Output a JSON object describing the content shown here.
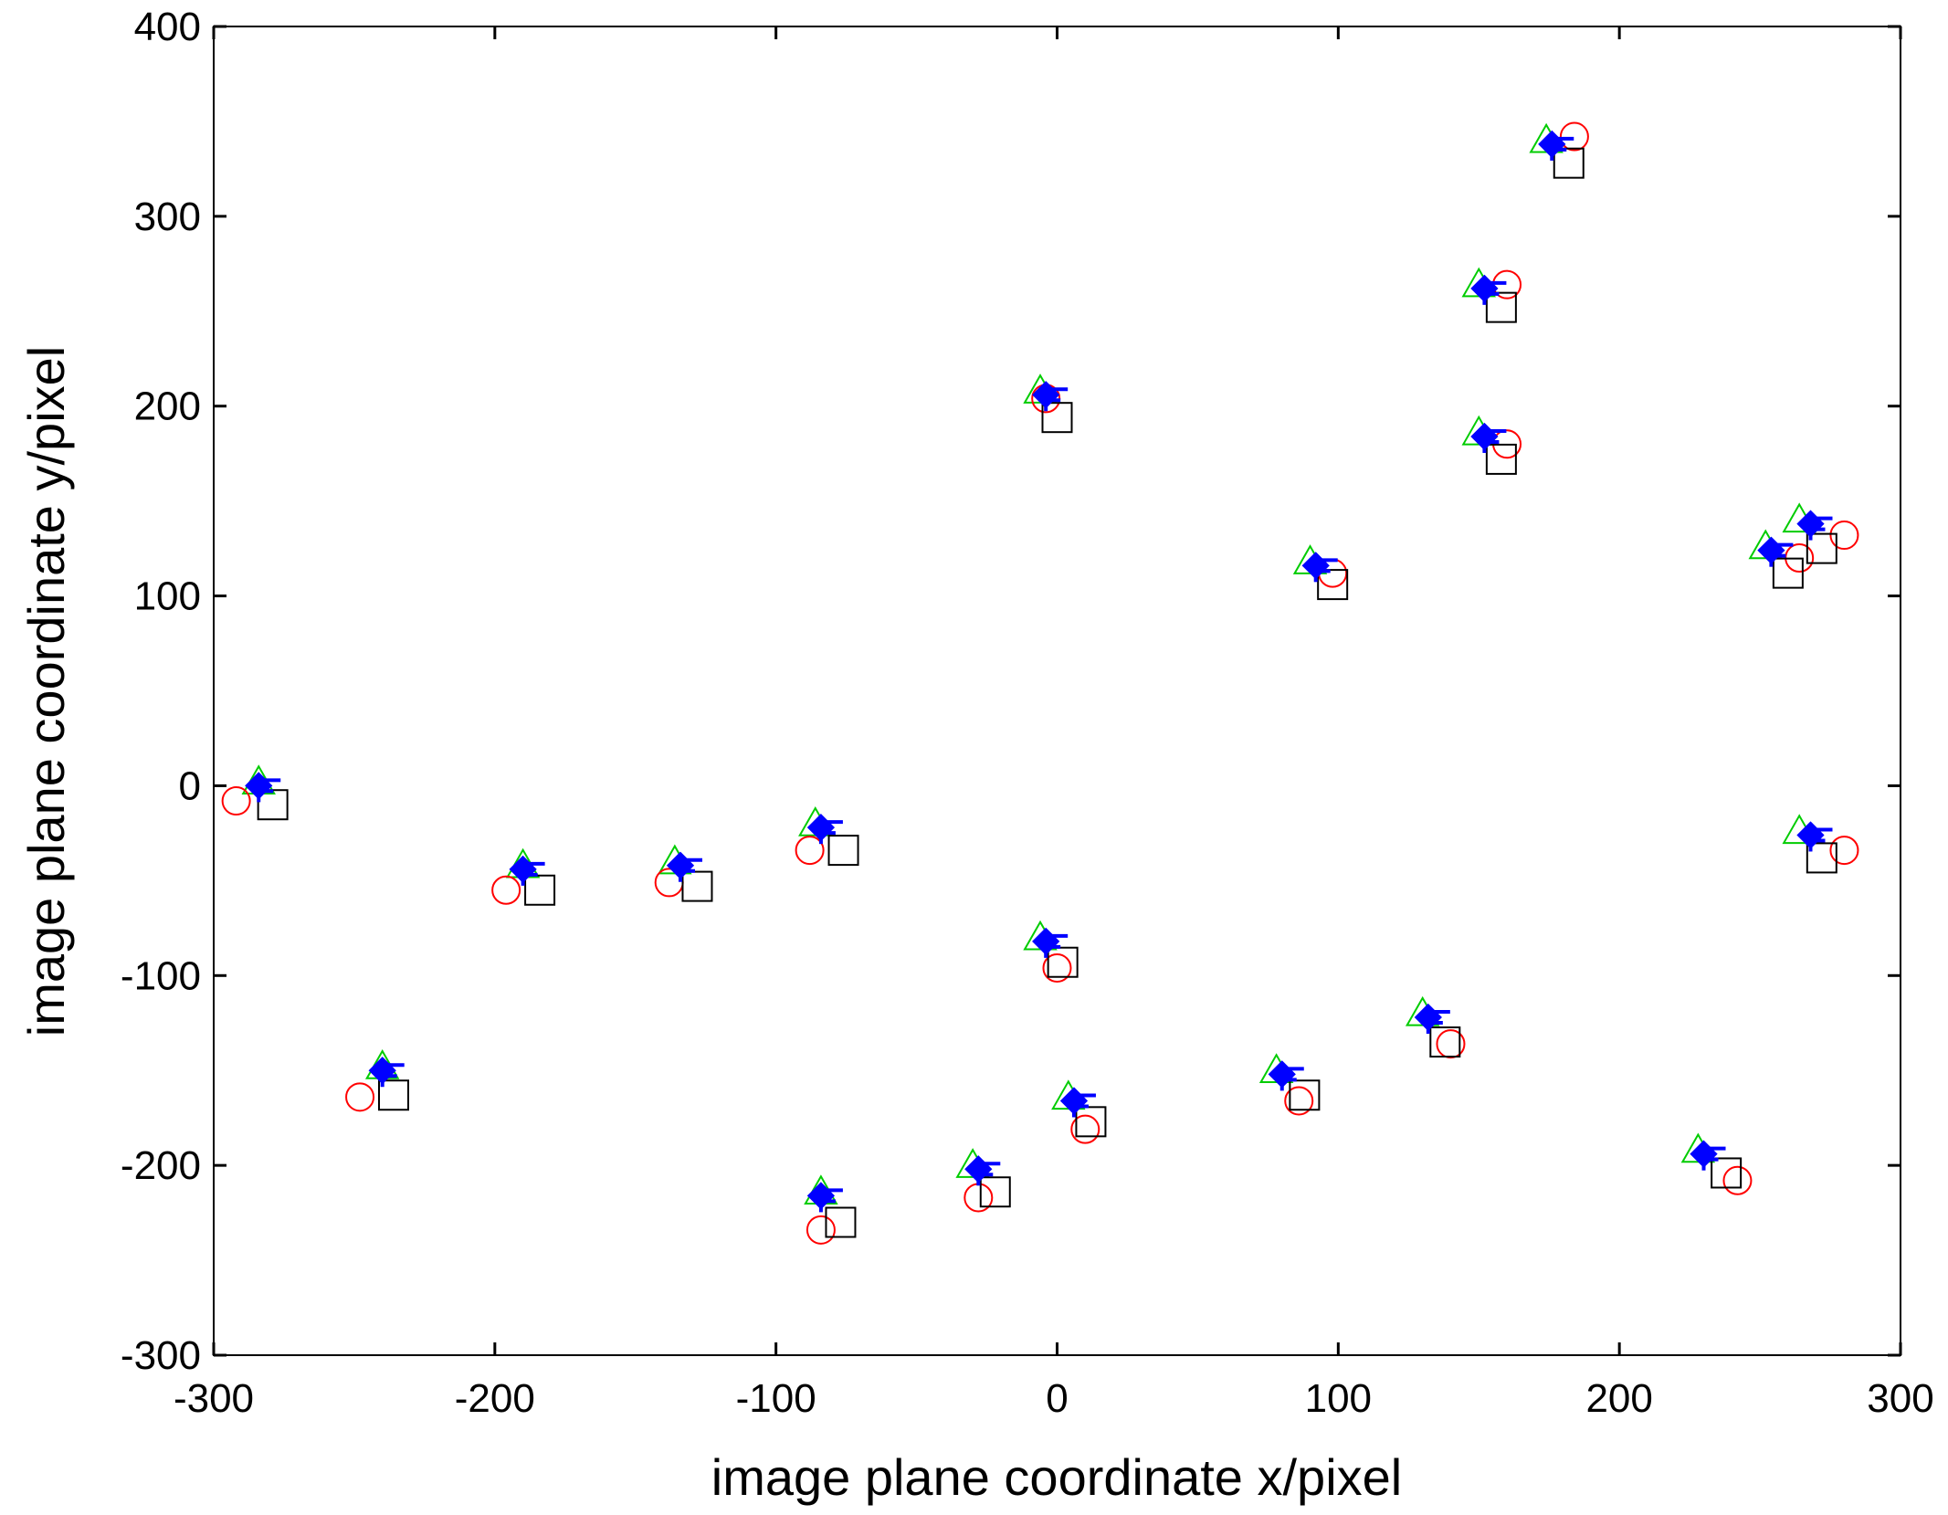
{
  "chart_data": {
    "type": "scatter",
    "title": "",
    "xlabel": "image plane coordinate x/pixel",
    "ylabel": "image plane coordinate y/pixel",
    "xlim": [
      -300,
      300
    ],
    "ylim": [
      -300,
      400
    ],
    "xticks": [
      -300,
      -200,
      -100,
      0,
      100,
      200,
      300
    ],
    "yticks": [
      -300,
      -200,
      -100,
      0,
      100,
      200,
      300,
      400
    ],
    "grid": false,
    "legend": "none",
    "series": [
      {
        "marker": "triangle",
        "color": "#00cc00",
        "points": [
          [
            -284,
            2
          ],
          [
            -240,
            -148
          ],
          [
            -190,
            -42
          ],
          [
            -136,
            -40
          ],
          [
            -86,
            -20
          ],
          [
            -84,
            -214
          ],
          [
            -30,
            -200
          ],
          [
            -6,
            208
          ],
          [
            -6,
            -80
          ],
          [
            4,
            -164
          ],
          [
            78,
            -150
          ],
          [
            90,
            118
          ],
          [
            130,
            -120
          ],
          [
            150,
            264
          ],
          [
            150,
            186
          ],
          [
            174,
            340
          ],
          [
            228,
            -192
          ],
          [
            252,
            126
          ],
          [
            264,
            140
          ],
          [
            264,
            -24
          ]
        ]
      },
      {
        "marker": "diamond",
        "color": "#0000ff",
        "points": [
          [
            -284,
            0
          ],
          [
            -240,
            -150
          ],
          [
            -190,
            -44
          ],
          [
            -134,
            -42
          ],
          [
            -84,
            -22
          ],
          [
            -84,
            -216
          ],
          [
            -28,
            -202
          ],
          [
            -4,
            206
          ],
          [
            -4,
            -82
          ],
          [
            6,
            -166
          ],
          [
            80,
            -152
          ],
          [
            92,
            116
          ],
          [
            132,
            -122
          ],
          [
            152,
            262
          ],
          [
            152,
            184
          ],
          [
            176,
            338
          ],
          [
            230,
            -194
          ],
          [
            254,
            124
          ],
          [
            268,
            138
          ],
          [
            268,
            -26
          ]
        ]
      },
      {
        "marker": "circle",
        "color": "#ff0000",
        "points": [
          [
            -292,
            -8
          ],
          [
            -248,
            -164
          ],
          [
            -196,
            -55
          ],
          [
            -138,
            -51
          ],
          [
            -88,
            -34
          ],
          [
            -84,
            -234
          ],
          [
            -28,
            -217
          ],
          [
            -4,
            204
          ],
          [
            0,
            -96
          ],
          [
            10,
            -181
          ],
          [
            86,
            -166
          ],
          [
            98,
            112
          ],
          [
            140,
            -136
          ],
          [
            160,
            264
          ],
          [
            160,
            180
          ],
          [
            184,
            342
          ],
          [
            242,
            -208
          ],
          [
            264,
            120
          ],
          [
            280,
            132
          ],
          [
            280,
            -34
          ]
        ]
      },
      {
        "marker": "square",
        "color": "#000000",
        "points": [
          [
            -279,
            -10
          ],
          [
            -236,
            -163
          ],
          [
            -184,
            -55
          ],
          [
            -128,
            -53
          ],
          [
            -76,
            -34
          ],
          [
            -77,
            -230
          ],
          [
            -22,
            -214
          ],
          [
            0,
            194
          ],
          [
            2,
            -93
          ],
          [
            12,
            -177
          ],
          [
            88,
            -163
          ],
          [
            98,
            106
          ],
          [
            138,
            -135
          ],
          [
            158,
            252
          ],
          [
            158,
            172
          ],
          [
            182,
            328
          ],
          [
            238,
            -204
          ],
          [
            260,
            112
          ],
          [
            272,
            125
          ],
          [
            272,
            -38
          ]
        ]
      }
    ]
  }
}
